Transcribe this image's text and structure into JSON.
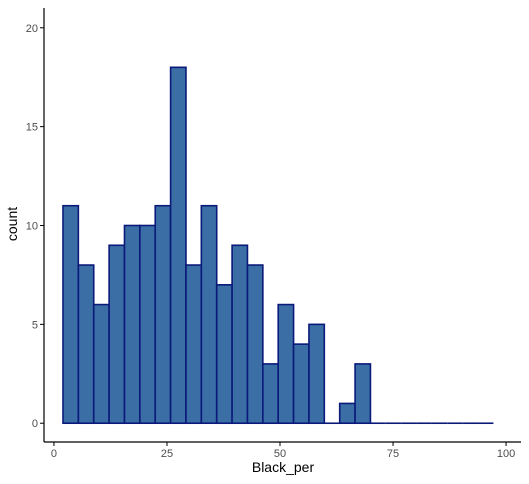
{
  "chart_data": {
    "type": "bar",
    "title": "",
    "xlabel": "Black_per",
    "ylabel": "count",
    "xlim": [
      -2.2,
      103.3
    ],
    "ylim": [
      -0.95,
      21.0
    ],
    "x_ticks": [
      0,
      25,
      50,
      75,
      100
    ],
    "y_ticks": [
      0,
      5,
      10,
      15,
      20
    ],
    "grid": false,
    "bin_width": 3.4,
    "bin_edges": [
      2.0,
      5.4,
      8.8,
      12.2,
      15.6,
      19.0,
      22.4,
      25.8,
      29.2,
      32.6,
      36.0,
      39.4,
      42.8,
      46.2,
      49.6,
      53.0,
      56.4,
      59.8,
      63.2,
      66.6,
      70.0,
      73.4,
      76.8,
      80.2,
      83.6,
      87.0,
      90.4,
      93.8,
      97.2
    ],
    "values": [
      11,
      8,
      6,
      9,
      10,
      10,
      11,
      18,
      8,
      11,
      7,
      9,
      8,
      3,
      6,
      4,
      5,
      0,
      1,
      3,
      0,
      0,
      0,
      0,
      0,
      0,
      0,
      0
    ],
    "colors": {
      "fill": "#3a6ea5",
      "stroke": "#0b1a7a",
      "axis": "#000000",
      "tick_text": "#4d4d4d"
    }
  },
  "x_tick_labels": [
    "0",
    "25",
    "50",
    "75",
    "100"
  ],
  "y_tick_labels": [
    "0",
    "5",
    "10",
    "15",
    "20"
  ]
}
